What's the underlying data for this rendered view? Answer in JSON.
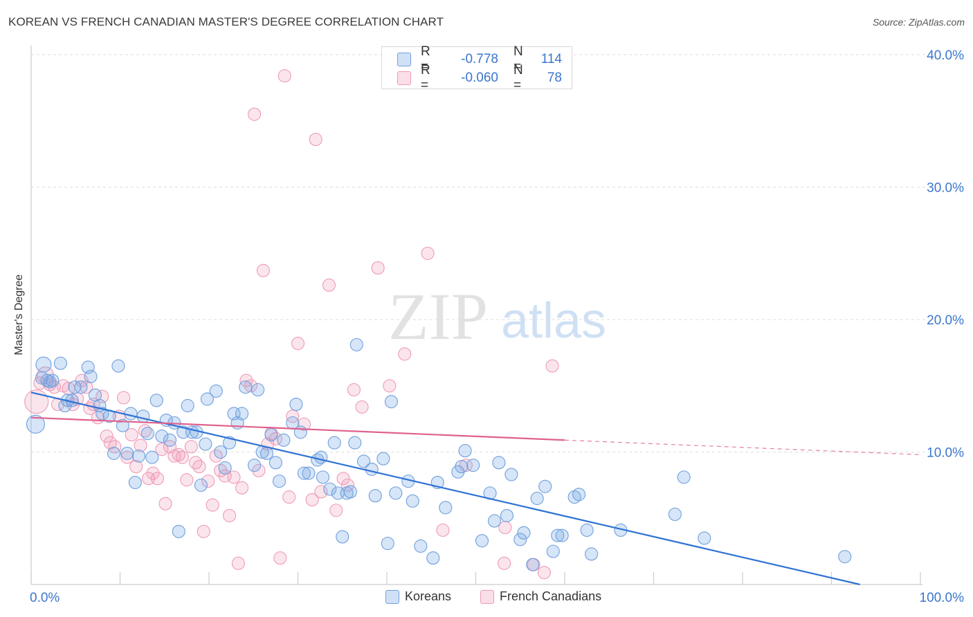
{
  "title": "KOREAN VS FRENCH CANADIAN MASTER'S DEGREE CORRELATION CHART",
  "source": "Source: ZipAtlas.com",
  "watermark": {
    "zip": "ZIP",
    "atlas": "atlas"
  },
  "legend_top": [
    {
      "r_label": "R =",
      "r_value": "-0.778",
      "n_label": "N =",
      "n_value": "114"
    },
    {
      "r_label": "R =",
      "r_value": "-0.060",
      "n_label": "N =",
      "n_value": "78"
    }
  ],
  "legend_bottom": [
    {
      "label": "Koreans"
    },
    {
      "label": "French Canadians"
    }
  ],
  "colors": {
    "korean_fill": "rgba(120,168,230,0.30)",
    "korean_stroke": "#6f9fdd",
    "korean_line": "#2f72d3",
    "french_fill": "rgba(240,150,180,0.25)",
    "french_stroke": "#ee9ab6",
    "french_line": "#e0608c",
    "axis_text": "#3a76cc",
    "grid": "#dddddd"
  },
  "chart_data": {
    "type": "scatter",
    "title": "KOREAN VS FRENCH CANADIAN MASTER'S DEGREE CORRELATION CHART",
    "xlabel": "",
    "ylabel": "Master's Degree",
    "xlim": [
      0,
      100
    ],
    "ylim": [
      0,
      40
    ],
    "x_tick_labels": [
      "0.0%",
      "100.0%"
    ],
    "y_ticks": [
      10,
      20,
      30,
      40
    ],
    "y_tick_labels": [
      "10.0%",
      "20.0%",
      "30.0%",
      "40.0%"
    ],
    "grid": true,
    "legend_position": "top-center",
    "series": [
      {
        "name": "Koreans",
        "trend": {
          "x": [
            0,
            93.2
          ],
          "y": [
            14.5,
            0
          ]
        },
        "points": [
          [
            0.5,
            12.1
          ],
          [
            1.2,
            15.6
          ],
          [
            1.4,
            16.6
          ],
          [
            1.8,
            15.4
          ],
          [
            2.1,
            15.3
          ],
          [
            2.4,
            15.4
          ],
          [
            3.3,
            16.7
          ],
          [
            3.8,
            13.5
          ],
          [
            4.1,
            13.9
          ],
          [
            4.6,
            13.9
          ],
          [
            4.9,
            14.9
          ],
          [
            5.6,
            14.9
          ],
          [
            6.4,
            16.4
          ],
          [
            6.7,
            15.7
          ],
          [
            7.2,
            14.3
          ],
          [
            7.7,
            13.5
          ],
          [
            8.0,
            12.9
          ],
          [
            8.8,
            12.7
          ],
          [
            9.3,
            9.9
          ],
          [
            9.8,
            16.5
          ],
          [
            10.3,
            12.0
          ],
          [
            10.8,
            9.9
          ],
          [
            11.2,
            12.9
          ],
          [
            11.7,
            7.7
          ],
          [
            12.1,
            9.7
          ],
          [
            12.6,
            12.7
          ],
          [
            13.1,
            11.4
          ],
          [
            13.6,
            9.6
          ],
          [
            14.1,
            13.9
          ],
          [
            14.7,
            11.2
          ],
          [
            15.2,
            12.4
          ],
          [
            15.6,
            10.9
          ],
          [
            16.1,
            12.2
          ],
          [
            16.6,
            4.0
          ],
          [
            17.1,
            11.5
          ],
          [
            17.6,
            13.5
          ],
          [
            18.1,
            11.5
          ],
          [
            18.6,
            11.5
          ],
          [
            19.1,
            7.5
          ],
          [
            19.6,
            10.6
          ],
          [
            19.8,
            14.0
          ],
          [
            20.8,
            14.6
          ],
          [
            21.3,
            10.0
          ],
          [
            21.8,
            8.8
          ],
          [
            22.3,
            10.7
          ],
          [
            22.8,
            12.9
          ],
          [
            23.2,
            12.2
          ],
          [
            23.7,
            12.9
          ],
          [
            24.1,
            14.9
          ],
          [
            25.1,
            9.0
          ],
          [
            25.5,
            14.7
          ],
          [
            26.0,
            10.0
          ],
          [
            26.5,
            9.9
          ],
          [
            27.0,
            11.3
          ],
          [
            27.5,
            9.2
          ],
          [
            27.9,
            7.8
          ],
          [
            28.4,
            10.9
          ],
          [
            29.4,
            12.2
          ],
          [
            29.8,
            13.6
          ],
          [
            30.3,
            11.5
          ],
          [
            30.7,
            8.4
          ],
          [
            31.2,
            8.4
          ],
          [
            32.2,
            9.4
          ],
          [
            32.6,
            9.6
          ],
          [
            32.8,
            8.1
          ],
          [
            33.6,
            7.2
          ],
          [
            34.1,
            10.7
          ],
          [
            34.5,
            6.9
          ],
          [
            35.0,
            3.6
          ],
          [
            35.5,
            6.9
          ],
          [
            35.9,
            7.0
          ],
          [
            36.4,
            10.7
          ],
          [
            36.6,
            18.1
          ],
          [
            37.4,
            9.3
          ],
          [
            38.3,
            8.7
          ],
          [
            38.7,
            6.7
          ],
          [
            39.6,
            9.5
          ],
          [
            40.1,
            3.1
          ],
          [
            40.5,
            13.8
          ],
          [
            41.0,
            6.9
          ],
          [
            42.4,
            7.8
          ],
          [
            42.9,
            6.3
          ],
          [
            43.8,
            2.9
          ],
          [
            45.2,
            2.0
          ],
          [
            45.7,
            7.7
          ],
          [
            46.6,
            5.8
          ],
          [
            48.0,
            8.5
          ],
          [
            48.4,
            8.9
          ],
          [
            48.8,
            10.1
          ],
          [
            49.7,
            9.0
          ],
          [
            50.7,
            3.3
          ],
          [
            51.6,
            6.9
          ],
          [
            52.1,
            4.8
          ],
          [
            52.6,
            9.2
          ],
          [
            53.5,
            5.2
          ],
          [
            54.0,
            8.3
          ],
          [
            55.0,
            3.4
          ],
          [
            55.4,
            3.9
          ],
          [
            56.4,
            1.5
          ],
          [
            56.9,
            6.5
          ],
          [
            57.8,
            7.4
          ],
          [
            58.7,
            2.5
          ],
          [
            59.2,
            3.7
          ],
          [
            59.7,
            3.7
          ],
          [
            61.1,
            6.6
          ],
          [
            61.6,
            6.8
          ],
          [
            62.5,
            4.1
          ],
          [
            63.0,
            2.3
          ],
          [
            66.3,
            4.1
          ],
          [
            72.4,
            5.3
          ],
          [
            73.4,
            8.1
          ],
          [
            75.7,
            3.5
          ],
          [
            91.5,
            2.1
          ]
        ]
      },
      {
        "name": "French Canadians",
        "trend": {
          "x": [
            0,
            60
          ],
          "y": [
            12.6,
            10.9
          ]
        },
        "trend_dashed": {
          "x": [
            60,
            100
          ],
          "y": [
            10.9,
            9.8
          ]
        },
        "points": [
          [
            0.6,
            13.8
          ],
          [
            1.0,
            15.2
          ],
          [
            1.6,
            15.8
          ],
          [
            2.1,
            15.1
          ],
          [
            2.6,
            14.9
          ],
          [
            3.0,
            13.6
          ],
          [
            3.6,
            15.0
          ],
          [
            4.2,
            14.8
          ],
          [
            4.7,
            13.6
          ],
          [
            5.2,
            14.0
          ],
          [
            5.7,
            15.4
          ],
          [
            6.2,
            14.9
          ],
          [
            6.6,
            13.3
          ],
          [
            7.0,
            13.6
          ],
          [
            7.5,
            12.6
          ],
          [
            8.0,
            14.2
          ],
          [
            8.5,
            11.2
          ],
          [
            8.9,
            10.7
          ],
          [
            9.4,
            10.4
          ],
          [
            9.9,
            12.7
          ],
          [
            10.4,
            14.1
          ],
          [
            10.8,
            9.6
          ],
          [
            11.3,
            11.3
          ],
          [
            11.8,
            8.9
          ],
          [
            12.3,
            10.5
          ],
          [
            12.8,
            11.6
          ],
          [
            13.2,
            8.0
          ],
          [
            13.7,
            8.4
          ],
          [
            14.2,
            8.0
          ],
          [
            14.7,
            10.2
          ],
          [
            15.1,
            6.1
          ],
          [
            15.6,
            10.4
          ],
          [
            16.1,
            9.7
          ],
          [
            16.6,
            9.8
          ],
          [
            17.0,
            9.6
          ],
          [
            17.5,
            7.9
          ],
          [
            18.0,
            10.4
          ],
          [
            18.5,
            9.2
          ],
          [
            18.9,
            8.9
          ],
          [
            19.4,
            4.0
          ],
          [
            19.9,
            7.8
          ],
          [
            20.4,
            6.0
          ],
          [
            20.8,
            9.7
          ],
          [
            21.3,
            8.6
          ],
          [
            21.8,
            8.2
          ],
          [
            22.3,
            5.2
          ],
          [
            22.8,
            8.1
          ],
          [
            23.3,
            1.6
          ],
          [
            23.7,
            7.3
          ],
          [
            24.2,
            15.4
          ],
          [
            24.7,
            15.0
          ],
          [
            25.1,
            35.5
          ],
          [
            25.6,
            8.6
          ],
          [
            26.1,
            23.7
          ],
          [
            26.6,
            10.6
          ],
          [
            27.0,
            11.4
          ],
          [
            27.5,
            11.0
          ],
          [
            28.0,
            2.0
          ],
          [
            28.5,
            38.4
          ],
          [
            29.0,
            6.6
          ],
          [
            29.4,
            12.7
          ],
          [
            30.0,
            18.2
          ],
          [
            30.7,
            12.1
          ],
          [
            31.6,
            6.4
          ],
          [
            32.0,
            33.6
          ],
          [
            32.6,
            7.0
          ],
          [
            33.5,
            22.6
          ],
          [
            34.3,
            5.6
          ],
          [
            35.1,
            8.0
          ],
          [
            35.6,
            7.5
          ],
          [
            36.3,
            14.7
          ],
          [
            37.2,
            13.4
          ],
          [
            39.0,
            23.9
          ],
          [
            40.3,
            15.0
          ],
          [
            42.0,
            17.4
          ],
          [
            44.6,
            25.0
          ],
          [
            46.3,
            4.1
          ],
          [
            48.9,
            9.0
          ],
          [
            53.2,
            1.6
          ],
          [
            53.3,
            4.3
          ],
          [
            56.5,
            1.5
          ],
          [
            57.7,
            0.9
          ],
          [
            58.6,
            16.5
          ]
        ]
      }
    ]
  }
}
